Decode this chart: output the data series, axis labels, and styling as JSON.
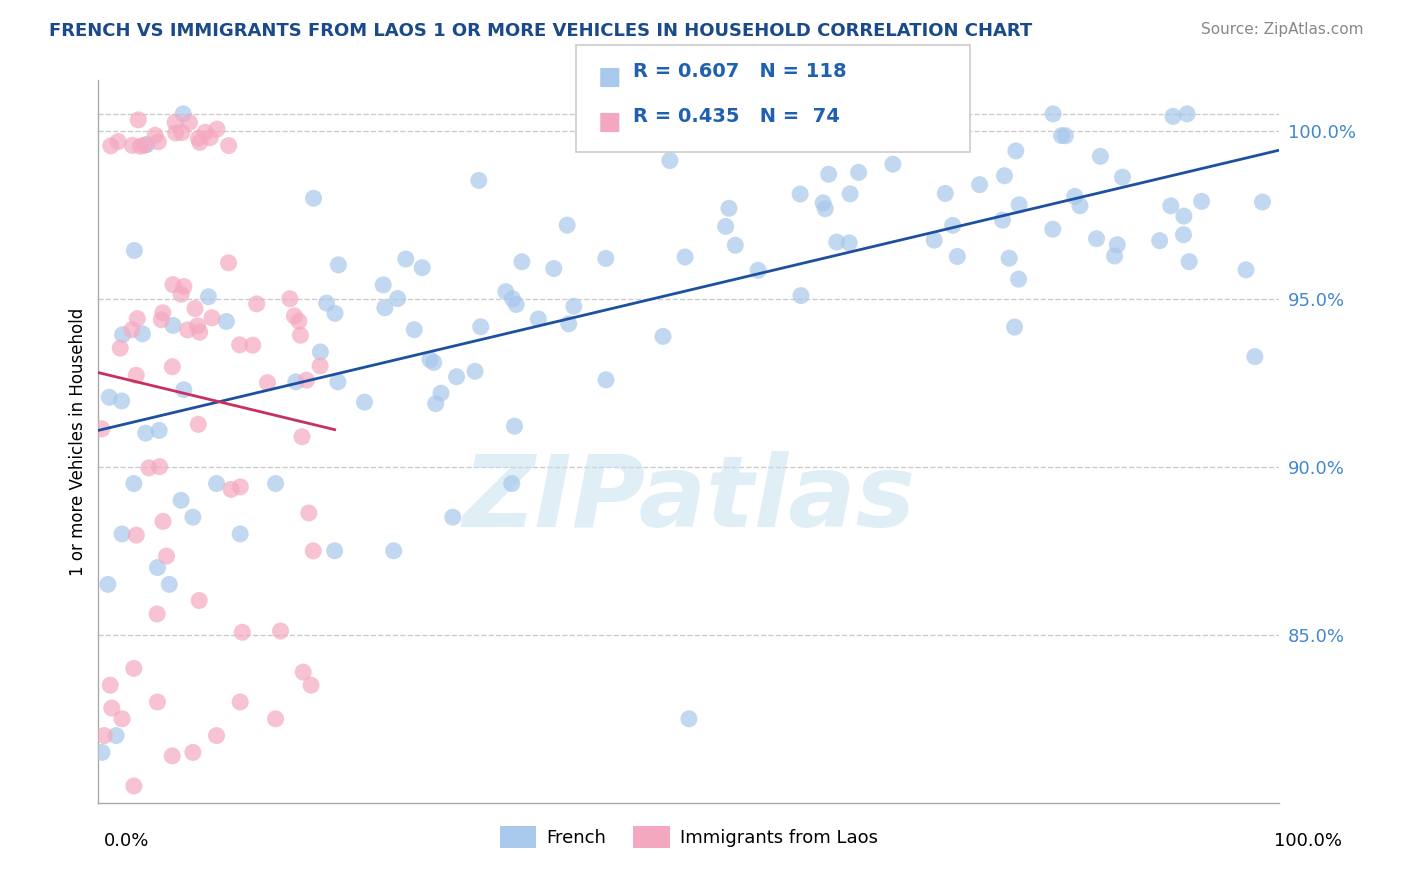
{
  "title": "FRENCH VS IMMIGRANTS FROM LAOS 1 OR MORE VEHICLES IN HOUSEHOLD CORRELATION CHART",
  "source": "Source: ZipAtlas.com",
  "ylabel": "1 or more Vehicles in Household",
  "legend_blue_label": "French",
  "legend_pink_label": "Immigrants from Laos",
  "legend_blue_R": "R = 0.607",
  "legend_blue_N": "N = 118",
  "legend_pink_R": "R = 0.435",
  "legend_pink_N": "N =  74",
  "blue_color": "#A8C8EC",
  "pink_color": "#F4A8C0",
  "trend_blue": "#1E50A0",
  "trend_pink": "#C83060",
  "xlim": [
    0,
    100
  ],
  "ylim": [
    80,
    101.5
  ],
  "yticks": [
    85,
    90,
    95,
    100
  ],
  "ytick_labels": [
    "85.0%",
    "90.0%",
    "95.0%",
    "100.0%"
  ],
  "watermark": "ZIPatlas",
  "title_color": "#1A4A8A",
  "tick_label_color": "#4488CC",
  "legend_text_color": "#2060B0"
}
